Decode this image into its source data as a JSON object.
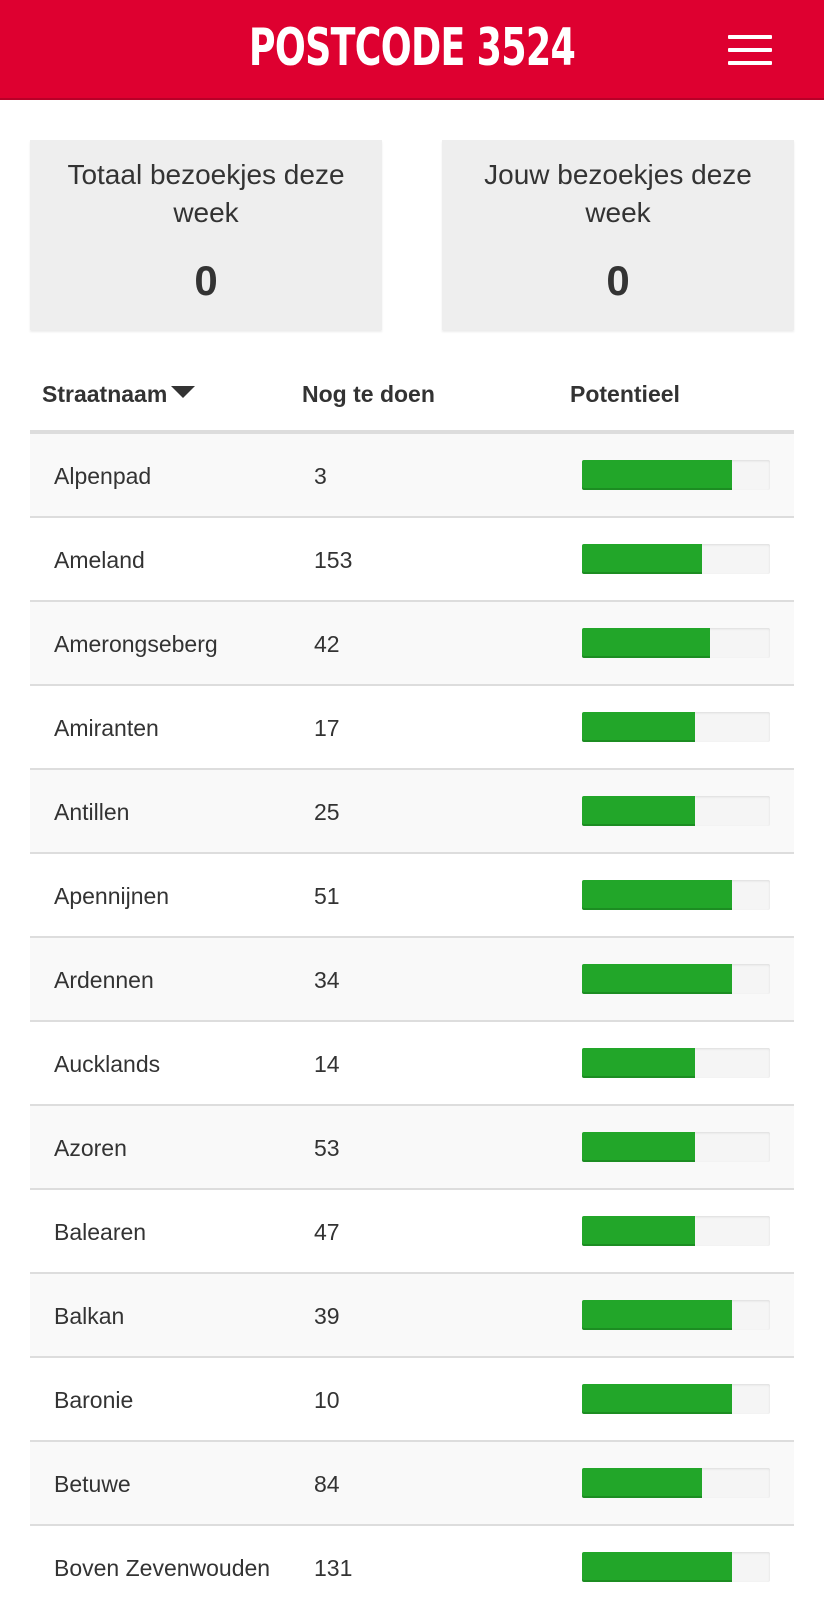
{
  "header": {
    "title": "POSTCODE 3524",
    "menu_icon": "hamburger-menu-icon",
    "brand_color": "#de0030"
  },
  "stats": {
    "total": {
      "label": "Totaal bezoekjes deze week",
      "value": "0"
    },
    "yours": {
      "label": "Jouw bezoekjes deze week",
      "value": "0"
    }
  },
  "table": {
    "columns": {
      "name": "Straatnaam",
      "todo": "Nog te doen",
      "potential": "Potentieel"
    },
    "sort_icon": "caret-down-icon",
    "bar_color": "#22a629",
    "rows": [
      {
        "name": "Alpenpad",
        "todo": "3",
        "potential": 0.8
      },
      {
        "name": "Ameland",
        "todo": "153",
        "potential": 0.64
      },
      {
        "name": "Amerongseberg",
        "todo": "42",
        "potential": 0.68
      },
      {
        "name": "Amiranten",
        "todo": "17",
        "potential": 0.6
      },
      {
        "name": "Antillen",
        "todo": "25",
        "potential": 0.6
      },
      {
        "name": "Apennijnen",
        "todo": "51",
        "potential": 0.8
      },
      {
        "name": "Ardennen",
        "todo": "34",
        "potential": 0.8
      },
      {
        "name": "Aucklands",
        "todo": "14",
        "potential": 0.6
      },
      {
        "name": "Azoren",
        "todo": "53",
        "potential": 0.6
      },
      {
        "name": "Balearen",
        "todo": "47",
        "potential": 0.6
      },
      {
        "name": "Balkan",
        "todo": "39",
        "potential": 0.8
      },
      {
        "name": "Baronie",
        "todo": "10",
        "potential": 0.8
      },
      {
        "name": "Betuwe",
        "todo": "84",
        "potential": 0.64
      },
      {
        "name": "Boven Zevenwouden",
        "todo": "131",
        "potential": 0.8
      }
    ]
  }
}
